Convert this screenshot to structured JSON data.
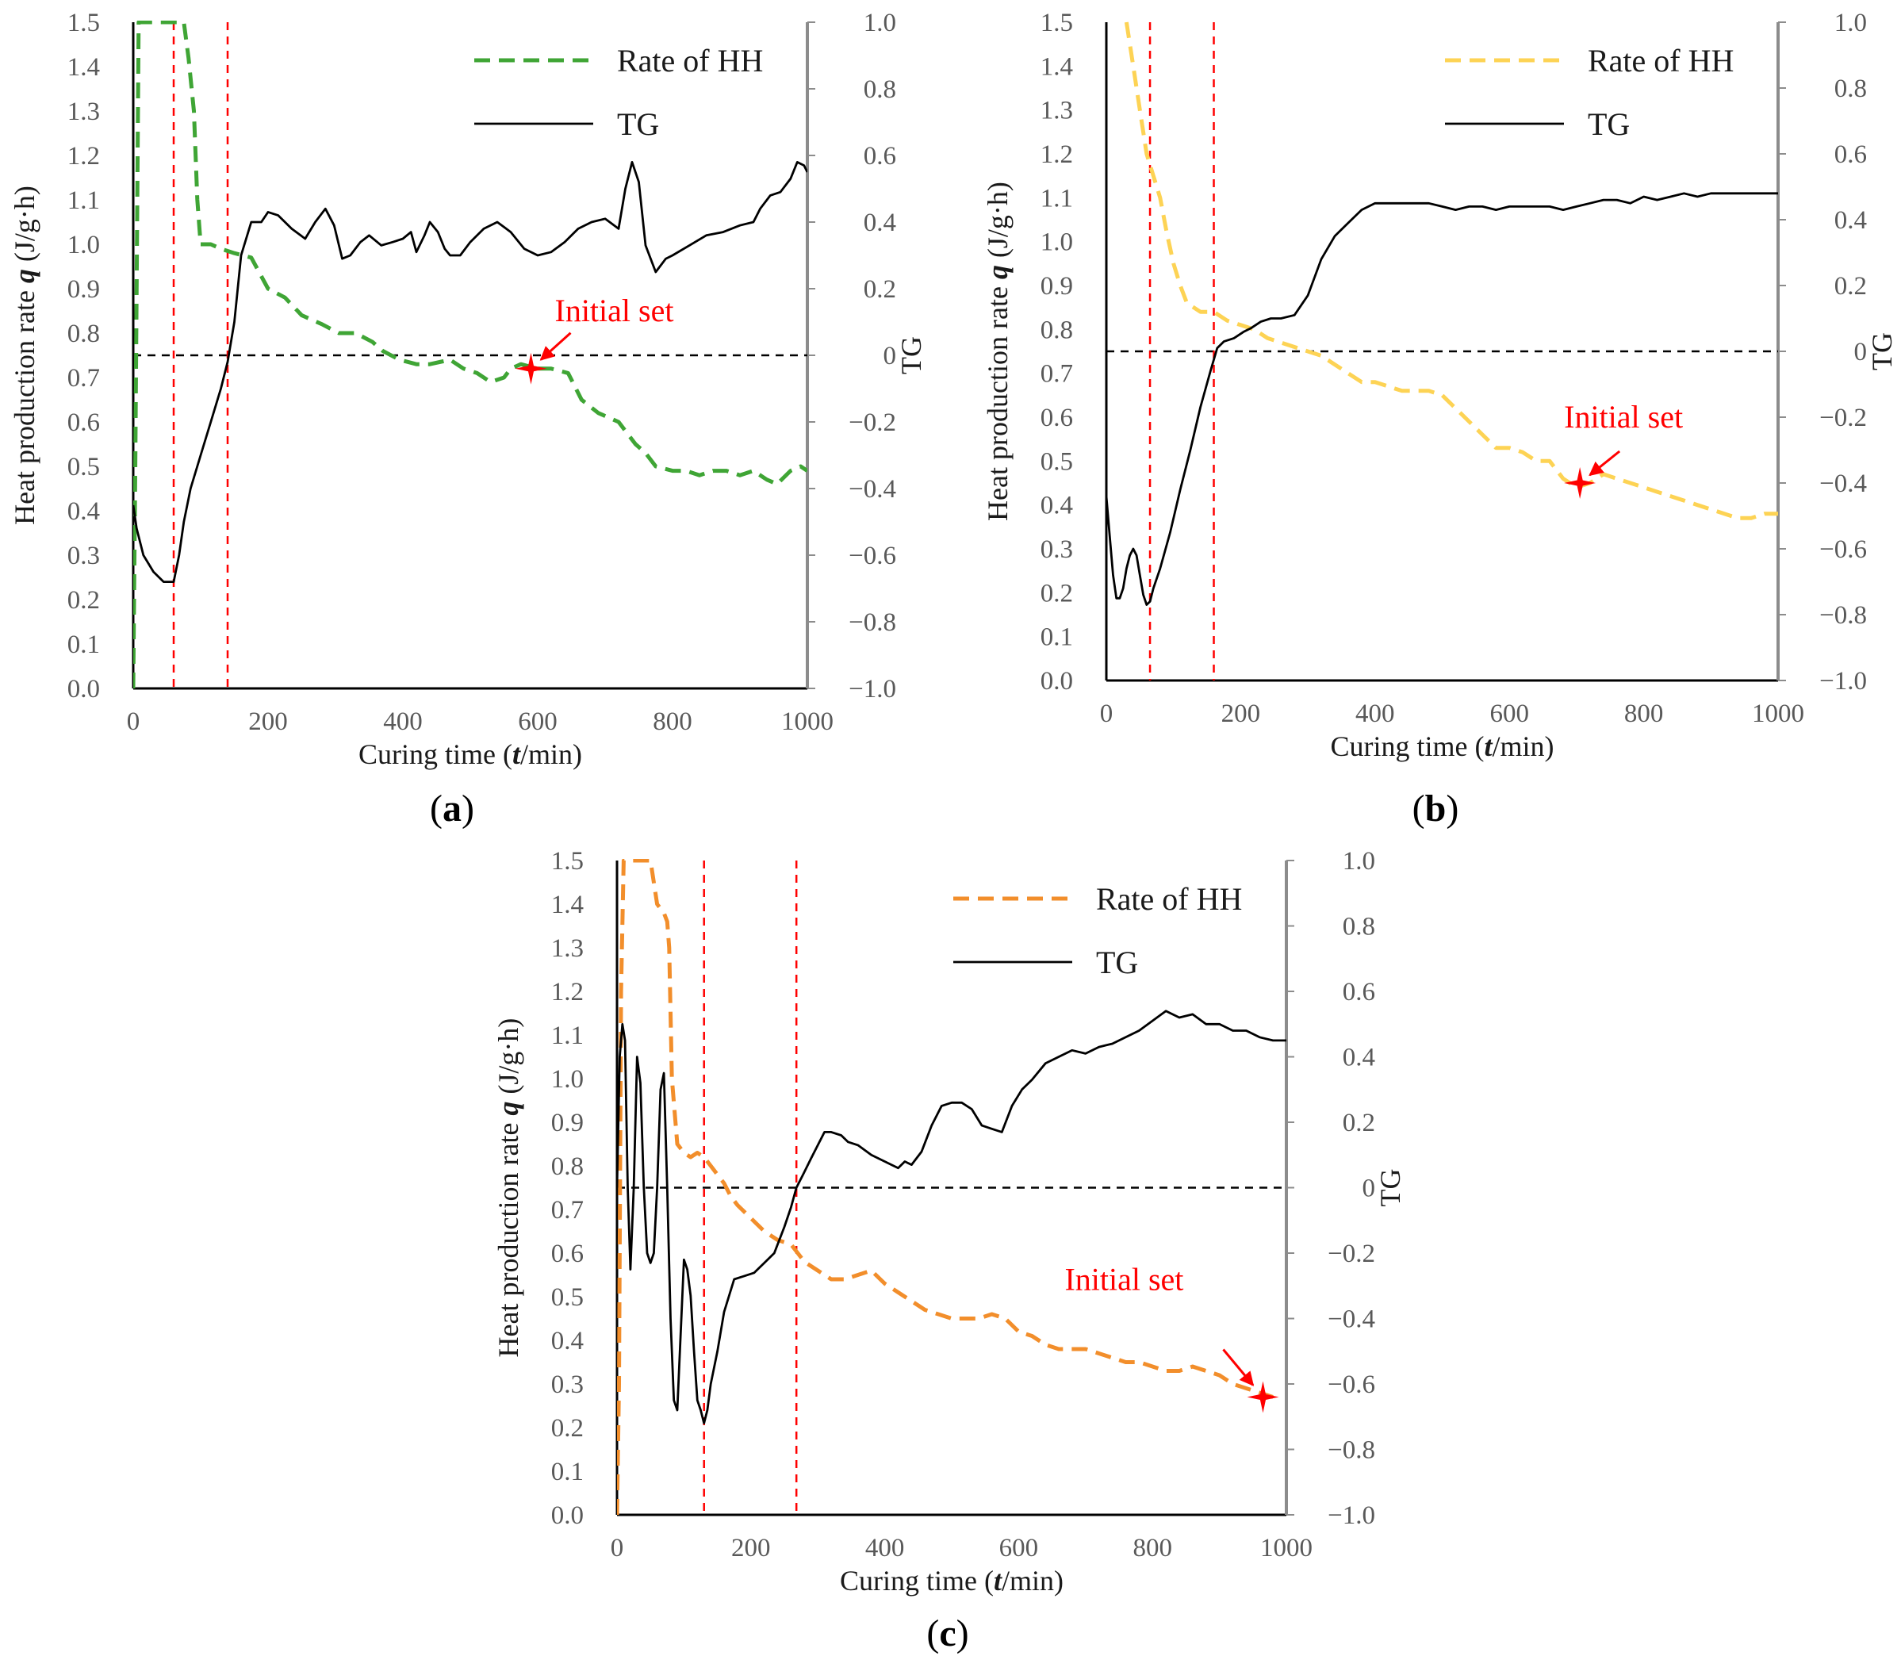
{
  "figure": {
    "panel_labels": [
      "a",
      "b",
      "c"
    ]
  },
  "chart_data": [
    {
      "panel": "a",
      "type": "line",
      "xlabel_prefix": "Curing time (",
      "xlabel_var": "t",
      "xlabel_suffix": "/min)",
      "ylabel_prefix": "Heat production rate ",
      "ylabel_var": "q",
      "ylabel_suffix": " (J/g·h)",
      "y2label": "TG",
      "xlim": [
        0,
        1000
      ],
      "ylim": [
        0,
        1.5
      ],
      "y2lim": [
        -1,
        1
      ],
      "xticks": [
        "0",
        "200",
        "400",
        "600",
        "800",
        "1000"
      ],
      "yticks": [
        "0.0",
        "0.1",
        "0.2",
        "0.3",
        "0.4",
        "0.5",
        "0.6",
        "0.7",
        "0.8",
        "0.9",
        "1.0",
        "1.1",
        "1.2",
        "1.3",
        "1.4",
        "1.5"
      ],
      "y2ticks": [
        "−1.0",
        "−0.8",
        "−0.6",
        "−0.4",
        "−0.2",
        "0",
        "0.2",
        "0.4",
        "0.6",
        "0.8",
        "1.0"
      ],
      "vlines": [
        60,
        140
      ],
      "hline_y2": 0,
      "legend": [
        "Rate of HH",
        "TG"
      ],
      "annotation": {
        "text": "Initial set",
        "x": 590,
        "y": 0.72
      },
      "series": [
        {
          "name": "Rate of HH",
          "axis": "left",
          "style": "dashed",
          "color": "#3fa535",
          "x": [
            0,
            3,
            8,
            15,
            25,
            40,
            55,
            68,
            75,
            82,
            90,
            95,
            100,
            115,
            130,
            150,
            175,
            200,
            225,
            250,
            280,
            305,
            330,
            355,
            370,
            395,
            420,
            440,
            470,
            490,
            510,
            530,
            550,
            560,
            575,
            600,
            620,
            645,
            665,
            690,
            720,
            745,
            760,
            775,
            800,
            820,
            840,
            860,
            880,
            900,
            920,
            940,
            955,
            975,
            990,
            1000
          ],
          "y": [
            0,
            0.5,
            1.5,
            1.5,
            1.5,
            1.5,
            1.5,
            1.5,
            1.5,
            1.42,
            1.3,
            1.1,
            1.0,
            1.0,
            0.99,
            0.98,
            0.97,
            0.9,
            0.88,
            0.84,
            0.82,
            0.8,
            0.8,
            0.78,
            0.76,
            0.74,
            0.73,
            0.73,
            0.74,
            0.72,
            0.71,
            0.69,
            0.7,
            0.72,
            0.73,
            0.72,
            0.72,
            0.71,
            0.65,
            0.62,
            0.6,
            0.55,
            0.53,
            0.5,
            0.49,
            0.49,
            0.48,
            0.49,
            0.49,
            0.48,
            0.49,
            0.47,
            0.46,
            0.49,
            0.5,
            0.49
          ]
        },
        {
          "name": "TG",
          "axis": "right",
          "style": "solid",
          "color": "#000000",
          "x": [
            0,
            5,
            15,
            30,
            45,
            60,
            68,
            75,
            85,
            100,
            115,
            130,
            140,
            150,
            160,
            175,
            190,
            200,
            215,
            235,
            255,
            270,
            285,
            298,
            310,
            322,
            337,
            350,
            368,
            385,
            400,
            412,
            420,
            432,
            440,
            452,
            462,
            470,
            485,
            500,
            520,
            540,
            560,
            580,
            600,
            620,
            640,
            660,
            680,
            700,
            720,
            730,
            740,
            750,
            760,
            775,
            790,
            800,
            825,
            850,
            875,
            900,
            920,
            930,
            945,
            960,
            975,
            985,
            995,
            1000
          ],
          "y2": [
            -0.45,
            -0.52,
            -0.6,
            -0.65,
            -0.68,
            -0.68,
            -0.6,
            -0.5,
            -0.4,
            -0.3,
            -0.2,
            -0.1,
            -0.02,
            0.1,
            0.3,
            0.4,
            0.4,
            0.43,
            0.42,
            0.38,
            0.35,
            0.4,
            0.44,
            0.39,
            0.29,
            0.3,
            0.34,
            0.36,
            0.33,
            0.34,
            0.35,
            0.37,
            0.31,
            0.36,
            0.4,
            0.37,
            0.32,
            0.3,
            0.3,
            0.34,
            0.38,
            0.4,
            0.37,
            0.32,
            0.3,
            0.31,
            0.34,
            0.38,
            0.4,
            0.41,
            0.38,
            0.5,
            0.58,
            0.52,
            0.33,
            0.25,
            0.29,
            0.3,
            0.33,
            0.36,
            0.37,
            0.39,
            0.4,
            0.44,
            0.48,
            0.49,
            0.53,
            0.58,
            0.57,
            0.55
          ]
        }
      ]
    },
    {
      "panel": "b",
      "type": "line",
      "xlabel_prefix": "Curing time (",
      "xlabel_var": "t",
      "xlabel_suffix": "/min)",
      "ylabel_prefix": "Heat production rate ",
      "ylabel_var": "q",
      "ylabel_suffix": " (J/g·h)",
      "y2label": "TG",
      "xlim": [
        0,
        1000
      ],
      "ylim": [
        0,
        1.5
      ],
      "y2lim": [
        -1,
        1
      ],
      "xticks": [
        "0",
        "200",
        "400",
        "600",
        "800",
        "1000"
      ],
      "yticks": [
        "0.0",
        "0.1",
        "0.2",
        "0.3",
        "0.4",
        "0.5",
        "0.6",
        "0.7",
        "0.8",
        "0.9",
        "1.0",
        "1.1",
        "1.2",
        "1.3",
        "1.4",
        "1.5"
      ],
      "y2ticks": [
        "−1.0",
        "−0.8",
        "−0.6",
        "−0.4",
        "−0.2",
        "0",
        "0.2",
        "0.4",
        "0.6",
        "0.8",
        "1.0"
      ],
      "vlines": [
        65,
        160
      ],
      "hline_y2": 0,
      "legend": [
        "Rate of HH",
        "TG"
      ],
      "annotation": {
        "text": "Initial set",
        "x": 705,
        "y": 0.45
      },
      "series": [
        {
          "name": "Rate of HH",
          "axis": "left",
          "style": "dashed",
          "color": "#fdd354",
          "x": [
            30,
            40,
            50,
            60,
            70,
            80,
            90,
            100,
            110,
            120,
            140,
            160,
            180,
            200,
            220,
            240,
            260,
            280,
            300,
            320,
            340,
            360,
            380,
            400,
            420,
            440,
            460,
            480,
            500,
            520,
            540,
            560,
            580,
            600,
            620,
            640,
            660,
            680,
            700,
            720,
            740,
            760,
            780,
            800,
            820,
            840,
            860,
            880,
            900,
            920,
            940,
            960,
            980,
            1000
          ],
          "y": [
            1.5,
            1.4,
            1.3,
            1.2,
            1.15,
            1.1,
            1.02,
            0.95,
            0.9,
            0.86,
            0.84,
            0.84,
            0.82,
            0.81,
            0.8,
            0.78,
            0.77,
            0.76,
            0.75,
            0.74,
            0.72,
            0.7,
            0.68,
            0.68,
            0.67,
            0.66,
            0.66,
            0.66,
            0.65,
            0.62,
            0.59,
            0.56,
            0.53,
            0.53,
            0.52,
            0.5,
            0.5,
            0.46,
            0.44,
            0.45,
            0.47,
            0.46,
            0.45,
            0.44,
            0.43,
            0.42,
            0.41,
            0.4,
            0.39,
            0.38,
            0.37,
            0.37,
            0.38,
            0.38
          ]
        },
        {
          "name": "TG",
          "axis": "right",
          "style": "solid",
          "color": "#000000",
          "x": [
            0,
            5,
            10,
            15,
            20,
            25,
            30,
            35,
            40,
            45,
            50,
            55,
            60,
            65,
            70,
            80,
            95,
            110,
            125,
            140,
            155,
            165,
            175,
            190,
            205,
            215,
            230,
            245,
            260,
            280,
            300,
            320,
            340,
            360,
            380,
            400,
            420,
            440,
            460,
            480,
            500,
            520,
            540,
            560,
            580,
            600,
            620,
            640,
            660,
            680,
            700,
            720,
            740,
            760,
            780,
            800,
            820,
            840,
            860,
            880,
            900,
            920,
            940,
            960,
            980,
            1000
          ],
          "y2": [
            -0.44,
            -0.56,
            -0.68,
            -0.75,
            -0.75,
            -0.72,
            -0.66,
            -0.62,
            -0.6,
            -0.62,
            -0.68,
            -0.74,
            -0.77,
            -0.76,
            -0.72,
            -0.66,
            -0.55,
            -0.42,
            -0.3,
            -0.17,
            -0.06,
            0.01,
            0.03,
            0.04,
            0.06,
            0.07,
            0.09,
            0.1,
            0.1,
            0.11,
            0.17,
            0.28,
            0.35,
            0.39,
            0.43,
            0.45,
            0.45,
            0.45,
            0.45,
            0.45,
            0.44,
            0.43,
            0.44,
            0.44,
            0.43,
            0.44,
            0.44,
            0.44,
            0.44,
            0.43,
            0.44,
            0.45,
            0.46,
            0.46,
            0.45,
            0.47,
            0.46,
            0.47,
            0.48,
            0.47,
            0.48,
            0.48,
            0.48,
            0.48,
            0.48,
            0.48
          ]
        }
      ]
    },
    {
      "panel": "c",
      "type": "line",
      "xlabel_prefix": "Curing time (",
      "xlabel_var": "t",
      "xlabel_suffix": "/min)",
      "ylabel_prefix": "Heat production rate ",
      "ylabel_var": "q",
      "ylabel_suffix": " (J/g·h)",
      "y2label": "TG",
      "xlim": [
        0,
        1000
      ],
      "ylim": [
        0,
        1.5
      ],
      "y2lim": [
        -1,
        1
      ],
      "xticks": [
        "0",
        "200",
        "400",
        "600",
        "800",
        "1000"
      ],
      "yticks": [
        "0.0",
        "0.1",
        "0.2",
        "0.3",
        "0.4",
        "0.5",
        "0.6",
        "0.7",
        "0.8",
        "0.9",
        "1.0",
        "1.1",
        "1.2",
        "1.3",
        "1.4",
        "1.5"
      ],
      "y2ticks": [
        "−1.0",
        "−0.8",
        "−0.6",
        "−0.4",
        "−0.2",
        "0",
        "0.2",
        "0.4",
        "0.6",
        "0.8",
        "1.0"
      ],
      "vlines": [
        130,
        268
      ],
      "hline_y2": 0,
      "legend": [
        "Rate of HH",
        "TG"
      ],
      "annotation": {
        "text": "Initial set",
        "x": 965,
        "y": 0.27
      },
      "series": [
        {
          "name": "Rate of HH",
          "axis": "left",
          "style": "dashed",
          "color": "#f28e2b",
          "x": [
            0,
            3,
            6,
            10,
            15,
            50,
            55,
            60,
            70,
            75,
            78,
            82,
            90,
            100,
            110,
            120,
            130,
            140,
            150,
            160,
            170,
            180,
            200,
            220,
            240,
            260,
            270,
            280,
            300,
            320,
            340,
            360,
            380,
            400,
            420,
            440,
            460,
            480,
            500,
            520,
            540,
            560,
            580,
            600,
            620,
            640,
            660,
            680,
            700,
            720,
            740,
            760,
            780,
            800,
            820,
            840,
            860,
            880,
            900,
            920,
            940,
            960,
            980
          ],
          "y": [
            0.0,
            0.3,
            1.2,
            1.5,
            1.5,
            1.5,
            1.45,
            1.4,
            1.38,
            1.36,
            1.3,
            1.0,
            0.85,
            0.83,
            0.82,
            0.83,
            0.82,
            0.8,
            0.78,
            0.76,
            0.73,
            0.71,
            0.68,
            0.65,
            0.63,
            0.62,
            0.6,
            0.58,
            0.56,
            0.54,
            0.54,
            0.55,
            0.56,
            0.53,
            0.51,
            0.49,
            0.47,
            0.46,
            0.45,
            0.45,
            0.45,
            0.46,
            0.45,
            0.42,
            0.41,
            0.39,
            0.38,
            0.38,
            0.38,
            0.37,
            0.36,
            0.35,
            0.35,
            0.34,
            0.33,
            0.33,
            0.34,
            0.33,
            0.32,
            0.3,
            0.29,
            0.28,
            0.27
          ]
        },
        {
          "name": "TG",
          "axis": "right",
          "style": "solid",
          "color": "#000000",
          "x": [
            0,
            4,
            8,
            12,
            16,
            20,
            25,
            30,
            35,
            40,
            45,
            50,
            55,
            60,
            65,
            70,
            75,
            80,
            85,
            90,
            95,
            100,
            105,
            110,
            115,
            120,
            125,
            130,
            135,
            140,
            150,
            160,
            175,
            190,
            205,
            220,
            235,
            250,
            260,
            268,
            278,
            290,
            300,
            310,
            320,
            335,
            345,
            360,
            380,
            400,
            410,
            420,
            430,
            440,
            455,
            470,
            485,
            500,
            515,
            530,
            545,
            560,
            575,
            590,
            605,
            620,
            640,
            660,
            680,
            700,
            720,
            740,
            760,
            780,
            800,
            820,
            840,
            860,
            880,
            900,
            920,
            940,
            960,
            980,
            1000
          ],
          "y2": [
            0.0,
            0.4,
            0.5,
            0.45,
            0.0,
            -0.25,
            0.0,
            0.4,
            0.32,
            0.0,
            -0.2,
            -0.23,
            -0.2,
            0.0,
            0.3,
            0.35,
            0.0,
            -0.4,
            -0.65,
            -0.68,
            -0.45,
            -0.22,
            -0.25,
            -0.33,
            -0.5,
            -0.65,
            -0.68,
            -0.72,
            -0.68,
            -0.6,
            -0.5,
            -0.38,
            -0.28,
            -0.27,
            -0.26,
            -0.23,
            -0.2,
            -0.12,
            -0.06,
            0.0,
            0.04,
            0.09,
            0.13,
            0.17,
            0.17,
            0.16,
            0.14,
            0.13,
            0.1,
            0.08,
            0.07,
            0.06,
            0.08,
            0.07,
            0.11,
            0.19,
            0.25,
            0.26,
            0.26,
            0.24,
            0.19,
            0.18,
            0.17,
            0.25,
            0.3,
            0.33,
            0.38,
            0.4,
            0.42,
            0.41,
            0.43,
            0.44,
            0.46,
            0.48,
            0.51,
            0.54,
            0.52,
            0.53,
            0.5,
            0.5,
            0.48,
            0.48,
            0.46,
            0.45,
            0.45
          ]
        }
      ]
    }
  ]
}
